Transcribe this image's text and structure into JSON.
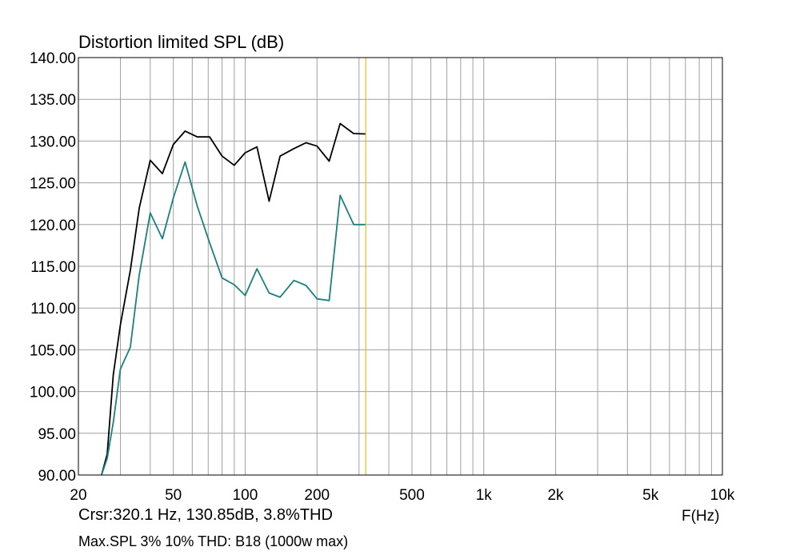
{
  "chart_data": {
    "type": "line",
    "title": "Distortion limited SPL (dB)",
    "xlabel": "F(Hz)",
    "ylabel": "",
    "x_scale": "log",
    "xlim": [
      20,
      10000
    ],
    "ylim": [
      90,
      140
    ],
    "grid": true,
    "y_ticks": [
      {
        "value": 90,
        "label": "90.00"
      },
      {
        "value": 95,
        "label": "95.00"
      },
      {
        "value": 100,
        "label": "100.00"
      },
      {
        "value": 105,
        "label": "105.00"
      },
      {
        "value": 110,
        "label": "110.00"
      },
      {
        "value": 115,
        "label": "115.00"
      },
      {
        "value": 120,
        "label": "120.00"
      },
      {
        "value": 125,
        "label": "125.00"
      },
      {
        "value": 130,
        "label": "130.00"
      },
      {
        "value": 135,
        "label": "135.00"
      },
      {
        "value": 140,
        "label": "140.00"
      }
    ],
    "x_ticks": [
      {
        "value": 20,
        "label": "20"
      },
      {
        "value": 50,
        "label": "50"
      },
      {
        "value": 100,
        "label": "100"
      },
      {
        "value": 200,
        "label": "200"
      },
      {
        "value": 500,
        "label": "500"
      },
      {
        "value": 1000,
        "label": "1k"
      },
      {
        "value": 2000,
        "label": "2k"
      },
      {
        "value": 5000,
        "label": "5k"
      },
      {
        "value": 10000,
        "label": "10k"
      }
    ],
    "cursor_x": 320.1,
    "series": [
      {
        "color": "#000000",
        "x": [
          25,
          26.4,
          28,
          30,
          33,
          36,
          40,
          45,
          50,
          56,
          63,
          71,
          80,
          90,
          100,
          112,
          126,
          140,
          160,
          180,
          200,
          225,
          250,
          285,
          320
        ],
        "y": [
          90.0,
          92.5,
          102.0,
          108.0,
          114.5,
          122.0,
          127.7,
          126.1,
          129.6,
          131.2,
          130.5,
          130.5,
          128.2,
          127.1,
          128.6,
          129.3,
          122.8,
          128.2,
          129.1,
          129.8,
          129.4,
          127.6,
          132.1,
          130.9,
          130.85
        ]
      },
      {
        "color": "#1a8080",
        "x": [
          25,
          26.4,
          28,
          30,
          33,
          36,
          40,
          45,
          50,
          56,
          63,
          71,
          80,
          90,
          100,
          112,
          126,
          140,
          160,
          180,
          200,
          225,
          250,
          285,
          320
        ],
        "y": [
          90.0,
          92.0,
          96.3,
          102.7,
          105.3,
          114.0,
          121.4,
          118.3,
          123.2,
          127.5,
          122.2,
          117.8,
          113.6,
          112.8,
          111.5,
          114.7,
          111.8,
          111.3,
          113.3,
          112.7,
          111.1,
          110.9,
          123.5,
          120.0,
          120.0
        ]
      }
    ]
  },
  "cursor_readout": "Crsr:320.1 Hz, 130.85dB, 3.8%THD",
  "footnote": "Max.SPL 3% 10% THD: B18 (1000w max)",
  "colors": {
    "grid": "#a0a0a0",
    "frame": "#000000",
    "cursor": "#e0c020"
  }
}
